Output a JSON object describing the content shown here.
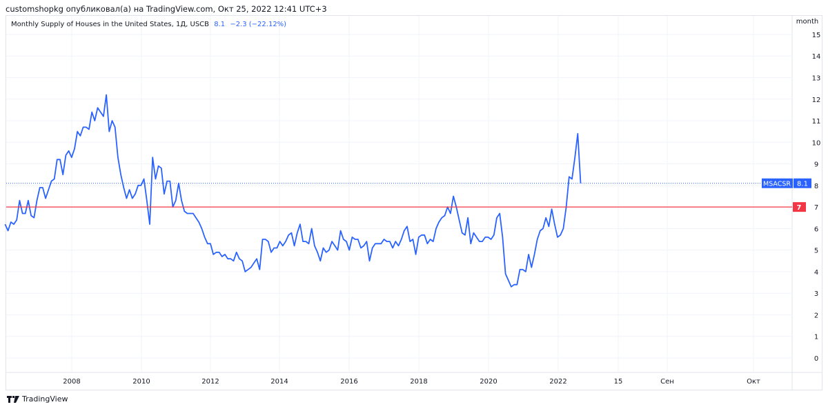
{
  "header": {
    "published": "customshopkg опубликовал(а) на TradingView.com, Окт 25, 2022 12:41 UTC+3"
  },
  "legend": {
    "title": "Monthly Supply of Houses in the United States, 1Д, USCB",
    "value": "8.1",
    "change": "−2.3 (−22.12%)"
  },
  "footer": {
    "brand": "TradingView",
    "logo_icon": "tradingview-logo-icon"
  },
  "colors": {
    "line": "#2962ff",
    "level": "#f23645",
    "label_bg": "#2962ff"
  },
  "chart_data": {
    "type": "line",
    "title": "Monthly Supply of Houses in the United States, 1Д, USCB",
    "y_unit": "month",
    "ylim": [
      -0.6,
      15.9
    ],
    "yticks": [
      0,
      1,
      2,
      3,
      4,
      5,
      6,
      7,
      8,
      9,
      10,
      11,
      12,
      13,
      14,
      15
    ],
    "xticks": [
      "2008",
      "2010",
      "2012",
      "2014",
      "2016",
      "2018",
      "2020",
      "2022",
      "15",
      "Сен",
      "Окт"
    ],
    "grid": true,
    "series_label": "MSACSR",
    "last_value": "8.1",
    "horizontal_line": {
      "value": 7,
      "label": "7"
    },
    "monthly_values_by_year": {
      "2006": [
        6.2,
        5.9,
        6.3,
        6.2,
        6.4,
        7.3,
        6.7,
        6.7,
        7.3,
        6.6,
        6.5,
        7.3
      ],
      "2007": [
        7.9,
        7.9,
        7.4,
        7.8,
        8.2,
        8.3,
        9.2,
        9.2,
        8.5,
        9.4,
        9.6,
        9.3
      ],
      "2008": [
        9.7,
        10.5,
        10.3,
        10.7,
        10.7,
        10.6,
        11.4,
        11.0,
        11.6,
        11.4,
        11.2,
        12.2
      ],
      "2009": [
        10.5,
        11.0,
        10.7,
        9.3,
        8.5,
        7.9,
        7.4,
        7.8,
        7.4,
        7.6,
        8.0,
        8.0
      ],
      "2010": [
        8.3,
        7.3,
        6.2,
        9.3,
        8.3,
        8.9,
        8.8,
        7.6,
        8.2,
        8.2,
        7.0,
        7.3
      ],
      "2011": [
        8.1,
        7.3,
        6.8,
        6.7,
        6.7,
        6.7,
        6.5,
        6.3,
        6.0,
        5.6,
        5.3,
        5.3
      ],
      "2012": [
        4.8,
        4.9,
        4.9,
        4.7,
        4.8,
        4.6,
        4.6,
        4.5,
        4.9,
        4.6,
        4.5,
        4.0
      ],
      "2013": [
        4.1,
        4.2,
        4.4,
        4.6,
        4.1,
        5.5,
        5.5,
        5.4,
        4.9,
        5.1,
        5.1,
        5.4
      ],
      "2014": [
        5.2,
        5.4,
        5.7,
        5.8,
        5.2,
        5.8,
        6.2,
        5.4,
        5.4,
        5.3,
        6.0,
        5.2
      ],
      "2015": [
        4.9,
        4.5,
        5.1,
        4.9,
        5.0,
        5.4,
        5.2,
        5.0,
        5.9,
        5.5,
        5.4,
        5.0
      ],
      "2016": [
        5.6,
        5.5,
        5.5,
        5.1,
        5.2,
        5.4,
        4.5,
        5.1,
        5.3,
        5.3,
        5.3,
        5.5
      ],
      "2017": [
        5.4,
        5.4,
        5.1,
        5.4,
        5.2,
        5.5,
        5.9,
        6.1,
        5.4,
        5.5,
        4.8,
        5.6
      ],
      "2018": [
        5.7,
        5.7,
        5.3,
        5.5,
        5.4,
        6.0,
        6.3,
        6.5,
        6.6,
        7.0,
        6.7,
        7.5
      ],
      "2019": [
        7.0,
        6.4,
        5.8,
        5.7,
        6.5,
        5.3,
        5.8,
        5.6,
        5.4,
        5.4,
        5.6,
        5.6
      ],
      "2020": [
        5.5,
        5.7,
        6.5,
        6.7,
        5.6,
        3.9,
        3.6,
        3.3,
        3.4,
        3.4,
        4.1,
        4.1
      ],
      "2021": [
        4.0,
        4.8,
        4.2,
        4.8,
        5.5,
        5.9,
        6.0,
        6.5,
        6.1,
        6.9,
        6.2,
        5.6
      ],
      "2022": [
        5.7,
        6.0,
        7.0,
        8.4,
        8.3,
        9.3,
        10.4,
        8.1
      ]
    }
  }
}
